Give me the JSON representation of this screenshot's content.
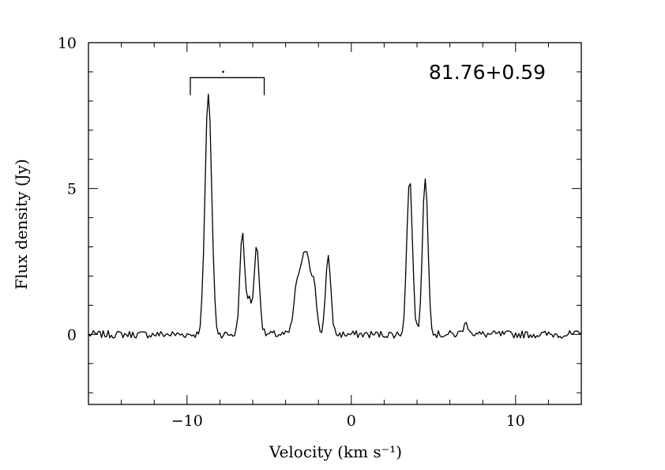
{
  "chart_data": {
    "type": "line",
    "title": "",
    "source_label": "81.76+0.59",
    "xlabel": "Velocity (km s⁻¹)",
    "ylabel": "Flux density (Jy)",
    "xlim": [
      -16,
      14
    ],
    "ylim": [
      -2.4,
      10
    ],
    "x_ticks": [
      -10,
      0,
      10
    ],
    "x_tick_labels": [
      "−10",
      "0",
      "10"
    ],
    "y_ticks": [
      0,
      5,
      10
    ],
    "y_tick_labels": [
      "0",
      "5",
      "10"
    ],
    "x_minor_step": 2,
    "y_minor_step": 1,
    "grid": false,
    "series": [
      {
        "velocity_channel_step": 0.1,
        "x_start": -16.0,
        "baseline_noise_jy": 0.1,
        "components": [
          {
            "center": -8.7,
            "peak": 8.3,
            "width": 0.2
          },
          {
            "center": -6.65,
            "peak": 3.4,
            "width": 0.14
          },
          {
            "center": -6.25,
            "peak": 1.2,
            "width": 0.18
          },
          {
            "center": -5.75,
            "peak": 3.0,
            "width": 0.16
          },
          {
            "center": -3.3,
            "peak": 1.5,
            "width": 0.2
          },
          {
            "center": -2.75,
            "peak": 2.9,
            "width": 0.28
          },
          {
            "center": -2.25,
            "peak": 1.2,
            "width": 0.16
          },
          {
            "center": -1.4,
            "peak": 2.6,
            "width": 0.16
          },
          {
            "center": 3.55,
            "peak": 5.35,
            "width": 0.17
          },
          {
            "center": 4.5,
            "peak": 5.35,
            "width": 0.17
          },
          {
            "center": 7.0,
            "peak": 0.35,
            "width": 0.2
          }
        ]
      }
    ],
    "annotations": [
      {
        "type": "bracket",
        "x_start": -9.8,
        "x_end": -5.3,
        "y": 8.8,
        "tick_down_to": 8.2
      },
      {
        "type": "dot",
        "x": -7.8,
        "y": 9.0
      }
    ]
  }
}
